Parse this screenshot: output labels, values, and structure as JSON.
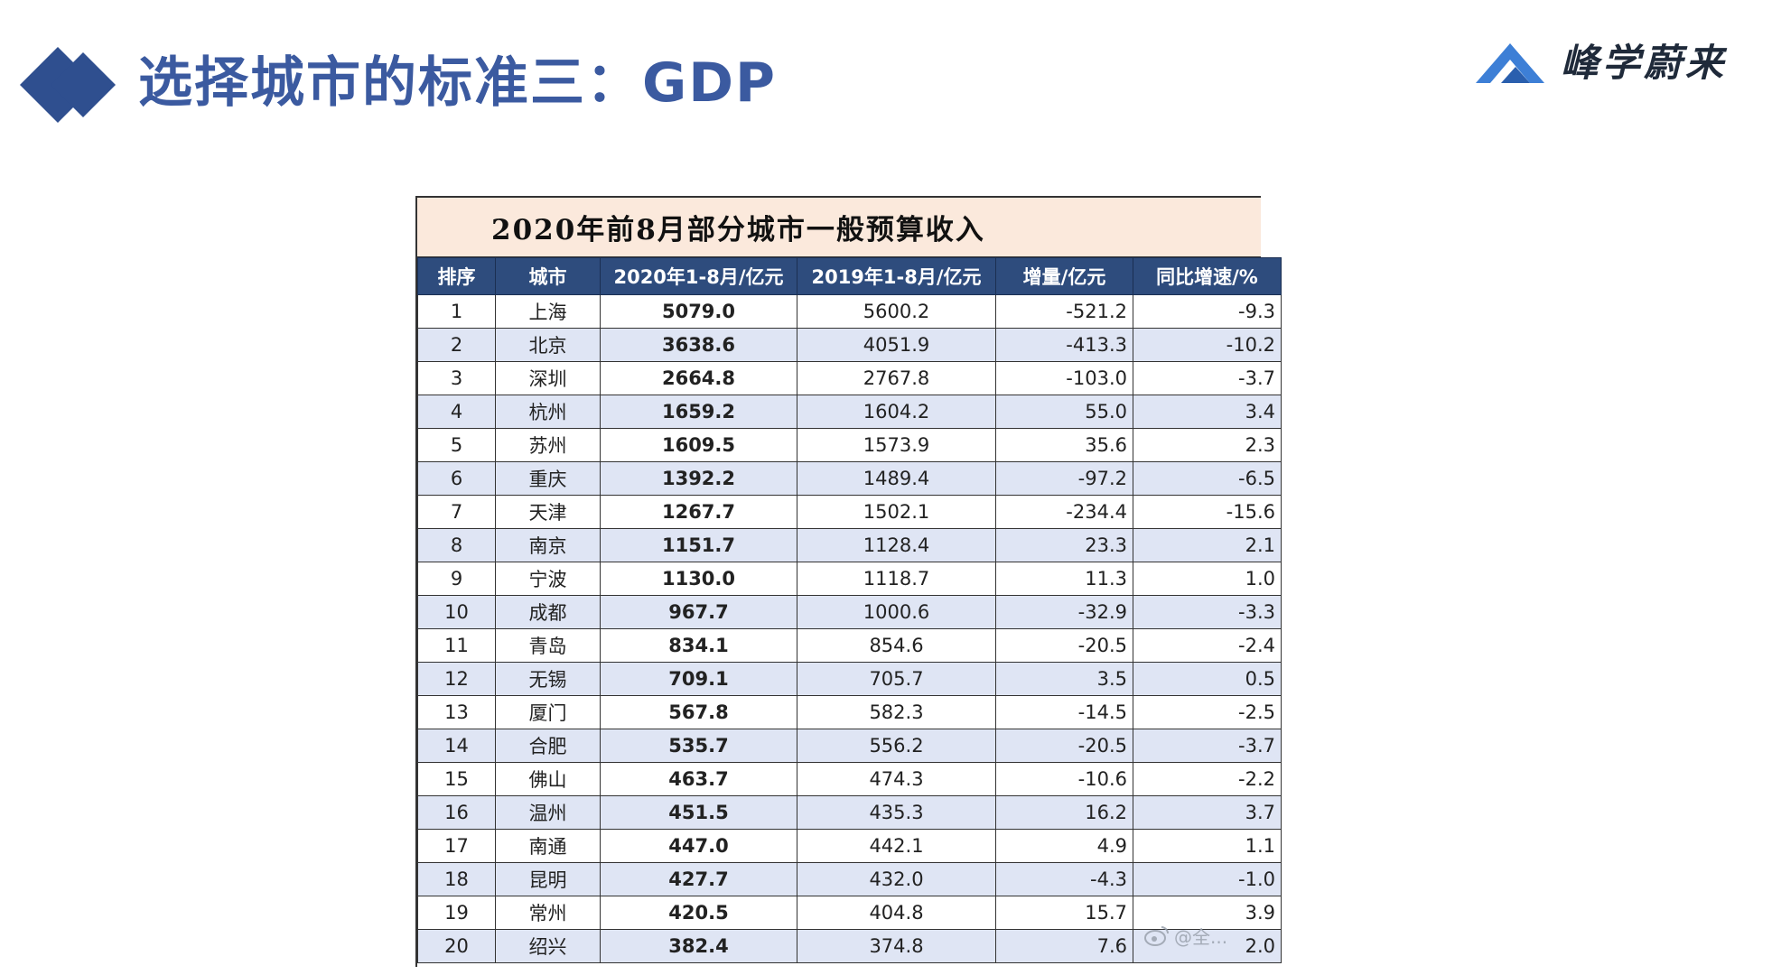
{
  "header": {
    "title": "选择城市的标准三：GDP",
    "brand_name": "峰学蔚来"
  },
  "colors": {
    "title": "#3b5aa0",
    "header_icon": "#2f4f8f",
    "brand_logo": "#3d7fd6",
    "table_header": "#2e4c7d",
    "row_stripe": "#dfe5f4",
    "negative": "#c0306a",
    "caption_bg": "#fbe9dc"
  },
  "icons": {
    "header": "double-diamond-icon",
    "brand": "mountain-logo-icon",
    "watermark": "weibo-icon"
  },
  "table": {
    "caption": "2020年前8月部分城市一般预算收入",
    "columns": [
      "排序",
      "城市",
      "2020年1-8月/亿元",
      "2019年1-8月/亿元",
      "增量/亿元",
      "同比增速/%"
    ],
    "rows": [
      {
        "rank": "1",
        "city": "上海",
        "v2020": "5079.0",
        "v2019": "5600.2",
        "inc": "-521.2",
        "rate": "-9.3"
      },
      {
        "rank": "2",
        "city": "北京",
        "v2020": "3638.6",
        "v2019": "4051.9",
        "inc": "-413.3",
        "rate": "-10.2"
      },
      {
        "rank": "3",
        "city": "深圳",
        "v2020": "2664.8",
        "v2019": "2767.8",
        "inc": "-103.0",
        "rate": "-3.7"
      },
      {
        "rank": "4",
        "city": "杭州",
        "v2020": "1659.2",
        "v2019": "1604.2",
        "inc": "55.0",
        "rate": "3.4"
      },
      {
        "rank": "5",
        "city": "苏州",
        "v2020": "1609.5",
        "v2019": "1573.9",
        "inc": "35.6",
        "rate": "2.3"
      },
      {
        "rank": "6",
        "city": "重庆",
        "v2020": "1392.2",
        "v2019": "1489.4",
        "inc": "-97.2",
        "rate": "-6.5"
      },
      {
        "rank": "7",
        "city": "天津",
        "v2020": "1267.7",
        "v2019": "1502.1",
        "inc": "-234.4",
        "rate": "-15.6"
      },
      {
        "rank": "8",
        "city": "南京",
        "v2020": "1151.7",
        "v2019": "1128.4",
        "inc": "23.3",
        "rate": "2.1"
      },
      {
        "rank": "9",
        "city": "宁波",
        "v2020": "1130.0",
        "v2019": "1118.7",
        "inc": "11.3",
        "rate": "1.0"
      },
      {
        "rank": "10",
        "city": "成都",
        "v2020": "967.7",
        "v2019": "1000.6",
        "inc": "-32.9",
        "rate": "-3.3"
      },
      {
        "rank": "11",
        "city": "青岛",
        "v2020": "834.1",
        "v2019": "854.6",
        "inc": "-20.5",
        "rate": "-2.4"
      },
      {
        "rank": "12",
        "city": "无锡",
        "v2020": "709.1",
        "v2019": "705.7",
        "inc": "3.5",
        "rate": "0.5"
      },
      {
        "rank": "13",
        "city": "厦门",
        "v2020": "567.8",
        "v2019": "582.3",
        "inc": "-14.5",
        "rate": "-2.5"
      },
      {
        "rank": "14",
        "city": "合肥",
        "v2020": "535.7",
        "v2019": "556.2",
        "inc": "-20.5",
        "rate": "-3.7"
      },
      {
        "rank": "15",
        "city": "佛山",
        "v2020": "463.7",
        "v2019": "474.3",
        "inc": "-10.6",
        "rate": "-2.2"
      },
      {
        "rank": "16",
        "city": "温州",
        "v2020": "451.5",
        "v2019": "435.3",
        "inc": "16.2",
        "rate": "3.7"
      },
      {
        "rank": "17",
        "city": "南通",
        "v2020": "447.0",
        "v2019": "442.1",
        "inc": "4.9",
        "rate": "1.1"
      },
      {
        "rank": "18",
        "city": "昆明",
        "v2020": "427.7",
        "v2019": "432.0",
        "inc": "-4.3",
        "rate": "-1.0"
      },
      {
        "rank": "19",
        "city": "常州",
        "v2020": "420.5",
        "v2019": "404.8",
        "inc": "15.7",
        "rate": "3.9"
      },
      {
        "rank": "20",
        "city": "绍兴",
        "v2020": "382.4",
        "v2019": "374.8",
        "inc": "7.6",
        "rate": "2.0"
      }
    ],
    "watermark": "@全..."
  }
}
